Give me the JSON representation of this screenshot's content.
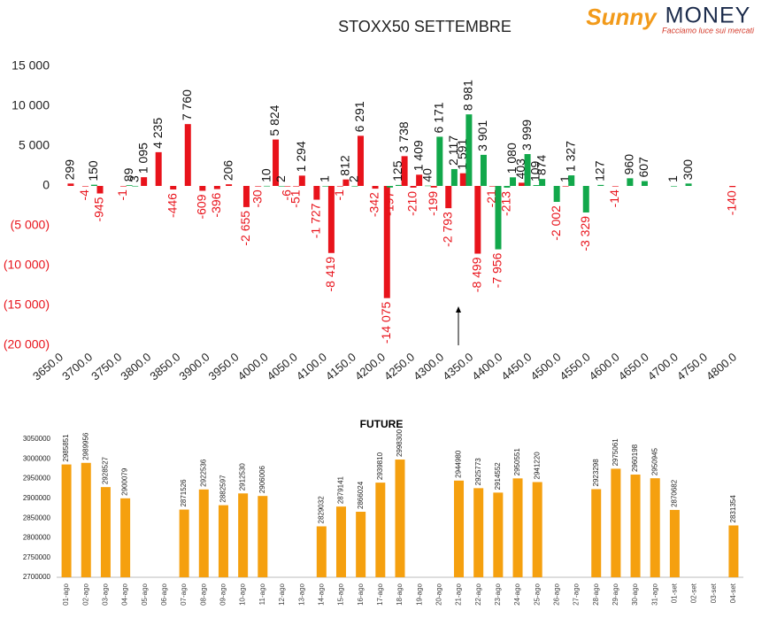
{
  "logo": {
    "brand1": "Sunny",
    "brand2": "MONEY",
    "tagline": "Facciamo luce sui mercati"
  },
  "chart_data": [
    {
      "type": "bar",
      "title": "STOXX50 SETTEMBRE",
      "xlim": [
        3650,
        4800
      ],
      "xticks": [
        {
          "value": 3650,
          "label": "3650.0"
        },
        {
          "value": 3700,
          "label": "3700.0"
        },
        {
          "value": 3750,
          "label": "3750.0"
        },
        {
          "value": 3800,
          "label": "3800.0"
        },
        {
          "value": 3850,
          "label": "3850.0"
        },
        {
          "value": 3900,
          "label": "3900.0"
        },
        {
          "value": 3950,
          "label": "3950.0"
        },
        {
          "value": 4000,
          "label": "4000.0"
        },
        {
          "value": 4050,
          "label": "4050.0"
        },
        {
          "value": 4100,
          "label": "4100.0"
        },
        {
          "value": 4150,
          "label": "4150.0"
        },
        {
          "value": 4200,
          "label": "4200.0"
        },
        {
          "value": 4250,
          "label": "4250.0"
        },
        {
          "value": 4300,
          "label": "4300.0"
        },
        {
          "value": 4350,
          "label": "4350.0"
        },
        {
          "value": 4400,
          "label": "4400.0"
        },
        {
          "value": 4450,
          "label": "4450.0"
        },
        {
          "value": 4500,
          "label": "4500.0"
        },
        {
          "value": 4550,
          "label": "4550.0"
        },
        {
          "value": 4600,
          "label": "4600.0"
        },
        {
          "value": 4650,
          "label": "4650.0"
        },
        {
          "value": 4700,
          "label": "4700.0"
        },
        {
          "value": 4750,
          "label": "4750.0"
        },
        {
          "value": 4800,
          "label": "4800.0"
        }
      ],
      "ylim": [
        -20000,
        15000
      ],
      "yticks": [
        {
          "value": 15000,
          "label": "15 000"
        },
        {
          "value": 10000,
          "label": "10 000"
        },
        {
          "value": 5000,
          "label": "5 000"
        },
        0,
        {
          "value": -5000,
          "label": "(5 000)"
        },
        {
          "value": -10000,
          "label": "(10 000)"
        },
        {
          "value": -15000,
          "label": "(15 000)"
        },
        {
          "value": -20000,
          "label": "(20 000)"
        }
      ],
      "negative_color": "#e8131b",
      "series": [
        {
          "color": "#e8131b",
          "x": [
            3665,
            3690,
            3715,
            3755,
            3790,
            3815,
            3840,
            3865,
            3890,
            3915,
            3935,
            3965,
            3985,
            4015,
            4035,
            4050,
            4060,
            4085,
            4110,
            4125,
            4135,
            4160,
            4185,
            4205,
            4235,
            4250,
            4260,
            4285,
            4310,
            4335,
            4360,
            4385,
            4435,
            4510,
            4595,
            4795
          ],
          "values": [
            299,
            -4,
            -945,
            -1,
            1095,
            4235,
            -446,
            7760,
            -609,
            -396,
            206,
            -2655,
            -30,
            5824,
            -6,
            -51,
            1294,
            -1727,
            -8419,
            -1,
            812,
            6291,
            -342,
            -14075,
            3738,
            -210,
            1409,
            -199,
            -2793,
            1591,
            -8499,
            -21,
            403,
            1,
            -14,
            -140
          ],
          "value_labels": [
            "299",
            "-4",
            "-945",
            "-1",
            "1 095",
            "4 235",
            "-446",
            "7 760",
            "-609",
            "-396",
            "206",
            "-2 655",
            "-30",
            "5 824",
            "-6",
            "-51",
            "1 294",
            "-1 727",
            "-8 419",
            "-1",
            "812",
            "6 291",
            "-342",
            "-14 075",
            "3 738",
            "-210",
            "1 409",
            "-199",
            "-2 793",
            "1 591",
            "-8 499",
            "-21",
            "403",
            "1",
            "-14",
            "-140"
          ]
        },
        {
          "color": "#12a84b",
          "x": [
            3705,
            3765,
            3775,
            4000,
            4025,
            4100,
            4150,
            4210,
            4225,
            4275,
            4295,
            4320,
            4345,
            4370,
            4395,
            4410,
            4420,
            4445,
            4460,
            4470,
            4495,
            4520,
            4545,
            4570,
            4620,
            4645,
            4695,
            4720
          ],
          "values": [
            150,
            89,
            3,
            10,
            2,
            1,
            2,
            -197,
            125,
            40,
            6171,
            2117,
            8981,
            3901,
            -7956,
            -213,
            1080,
            3999,
            109,
            874,
            -2002,
            1327,
            -3329,
            127,
            960,
            607,
            1,
            300
          ],
          "value_labels": [
            "150",
            "89",
            "3",
            "10",
            "2",
            "1",
            "2",
            "-197",
            "125",
            "40",
            "6 171",
            "2 117",
            "8 981",
            "3 901",
            "-7 956",
            "-213",
            "1 080",
            "3 999",
            "109",
            "874",
            "-2 002",
            "1 327",
            "-3 329",
            "127",
            "960",
            "607",
            "1",
            "300"
          ]
        }
      ]
    },
    {
      "type": "bar",
      "title": "FUTURE",
      "color": "#f5a00f",
      "categories": [
        "01-ago",
        "02-ago",
        "03-ago",
        "04-ago",
        "05-ago",
        "06-ago",
        "07-ago",
        "08-ago",
        "09-ago",
        "10-ago",
        "11-ago",
        "12-ago",
        "13-ago",
        "14-ago",
        "15-ago",
        "16-ago",
        "17-ago",
        "18-ago",
        "19-ago",
        "20-ago",
        "21-ago",
        "22-ago",
        "23-ago",
        "24-ago",
        "25-ago",
        "26-ago",
        "27-ago",
        "28-ago",
        "29-ago",
        "30-ago",
        "31-ago",
        "01-set",
        "02-set",
        "03-set",
        "04-set"
      ],
      "values": [
        2985851,
        2989956,
        2928527,
        2900079,
        null,
        null,
        2871526,
        2922536,
        2882597,
        2912530,
        2906006,
        null,
        null,
        2829032,
        2879141,
        2866024,
        2939810,
        2998300,
        null,
        null,
        2944980,
        2925773,
        2914552,
        2950551,
        2941220,
        null,
        null,
        2923298,
        2975061,
        2960198,
        2950945,
        2870682,
        null,
        null,
        2831354
      ],
      "ylim": [
        2700000,
        3050000
      ],
      "yticks": [
        2700000,
        2750000,
        2800000,
        2850000,
        2900000,
        2950000,
        3000000,
        3050000
      ]
    }
  ]
}
